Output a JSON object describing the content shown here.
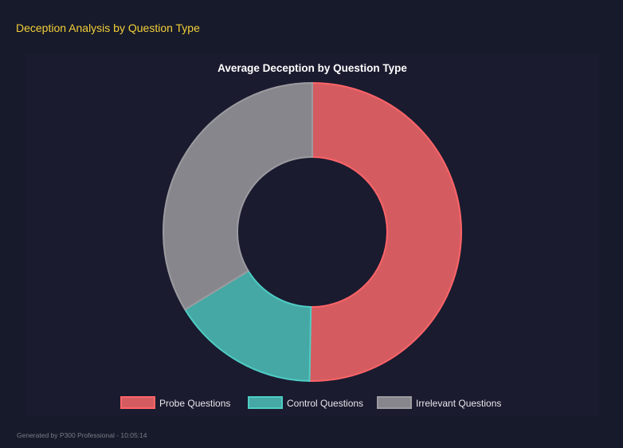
{
  "header": {
    "title": "Deception Analysis by Question Type"
  },
  "footer": {
    "text": "Generated by P300 Professional - 10:05:14"
  },
  "chart_data": {
    "type": "doughnut",
    "title": "Average Deception by Question Type",
    "categories": [
      "Probe Questions",
      "Control Questions",
      "Irrelevant Questions"
    ],
    "values": [
      50.3,
      16.0,
      33.7
    ],
    "colors": [
      "#d45c60",
      "#45a8a4",
      "#87868c"
    ],
    "border_colors": [
      "#ff6468",
      "#4ecdc4",
      "#9b9ba0"
    ],
    "legend_position": "bottom"
  }
}
